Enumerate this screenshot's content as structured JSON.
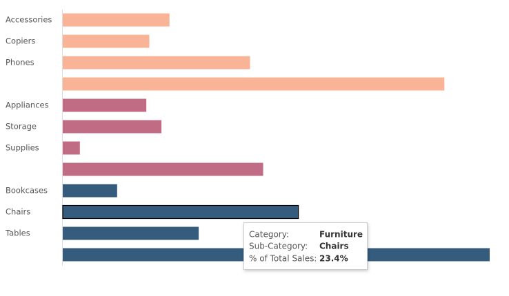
{
  "chart_data": {
    "type": "bar",
    "orientation": "horizontal",
    "categories": [
      "Accessories",
      "Copiers",
      "Phones",
      null,
      "Appliances",
      "Storage",
      "Supplies",
      null,
      "Bookcases",
      "Chairs",
      "Tables",
      null
    ],
    "values": [
      10.6,
      8.6,
      18.6,
      37.9,
      8.3,
      9.8,
      1.7,
      19.9,
      5.4,
      23.4,
      13.5,
      42.4
    ],
    "colors": [
      "#f9b497",
      "#f9b497",
      "#f9b497",
      "#f9b497",
      "#c06c84",
      "#c06c84",
      "#c06c84",
      "#c06c84",
      "#355c7d",
      "#355c7d",
      "#355c7d",
      "#355c7d"
    ],
    "tooltip": {
      "rows": [
        {
          "label": "Category:",
          "value": "Furniture"
        },
        {
          "label": "Sub-Category:",
          "value": "Chairs"
        },
        {
          "label": "% of Total Sales:",
          "value": "23.4%"
        }
      ]
    }
  }
}
